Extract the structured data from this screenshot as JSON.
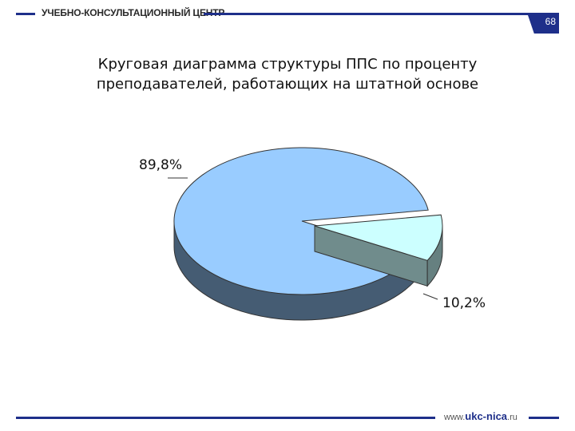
{
  "header": {
    "org_name": "УЧЕБНО-КОНСУЛЬТАЦИОННЫЙ ЦЕНТР",
    "page_number": "68"
  },
  "footer": {
    "url_prefix": "www.",
    "url_brand": "ukc-nica",
    "url_suffix": ".ru"
  },
  "chart_data": {
    "type": "pie",
    "title_lines": [
      "Круговая диаграмма структуры ППС по проценту",
      "преподавателей, работающих на штатной основе"
    ],
    "slices": [
      {
        "value": 89.8,
        "label": "89,8%",
        "color": "#99ccff",
        "exploded": false
      },
      {
        "value": 10.2,
        "label": "10,2%",
        "color": "#ccffff",
        "exploded": true
      }
    ],
    "legend": "none"
  }
}
